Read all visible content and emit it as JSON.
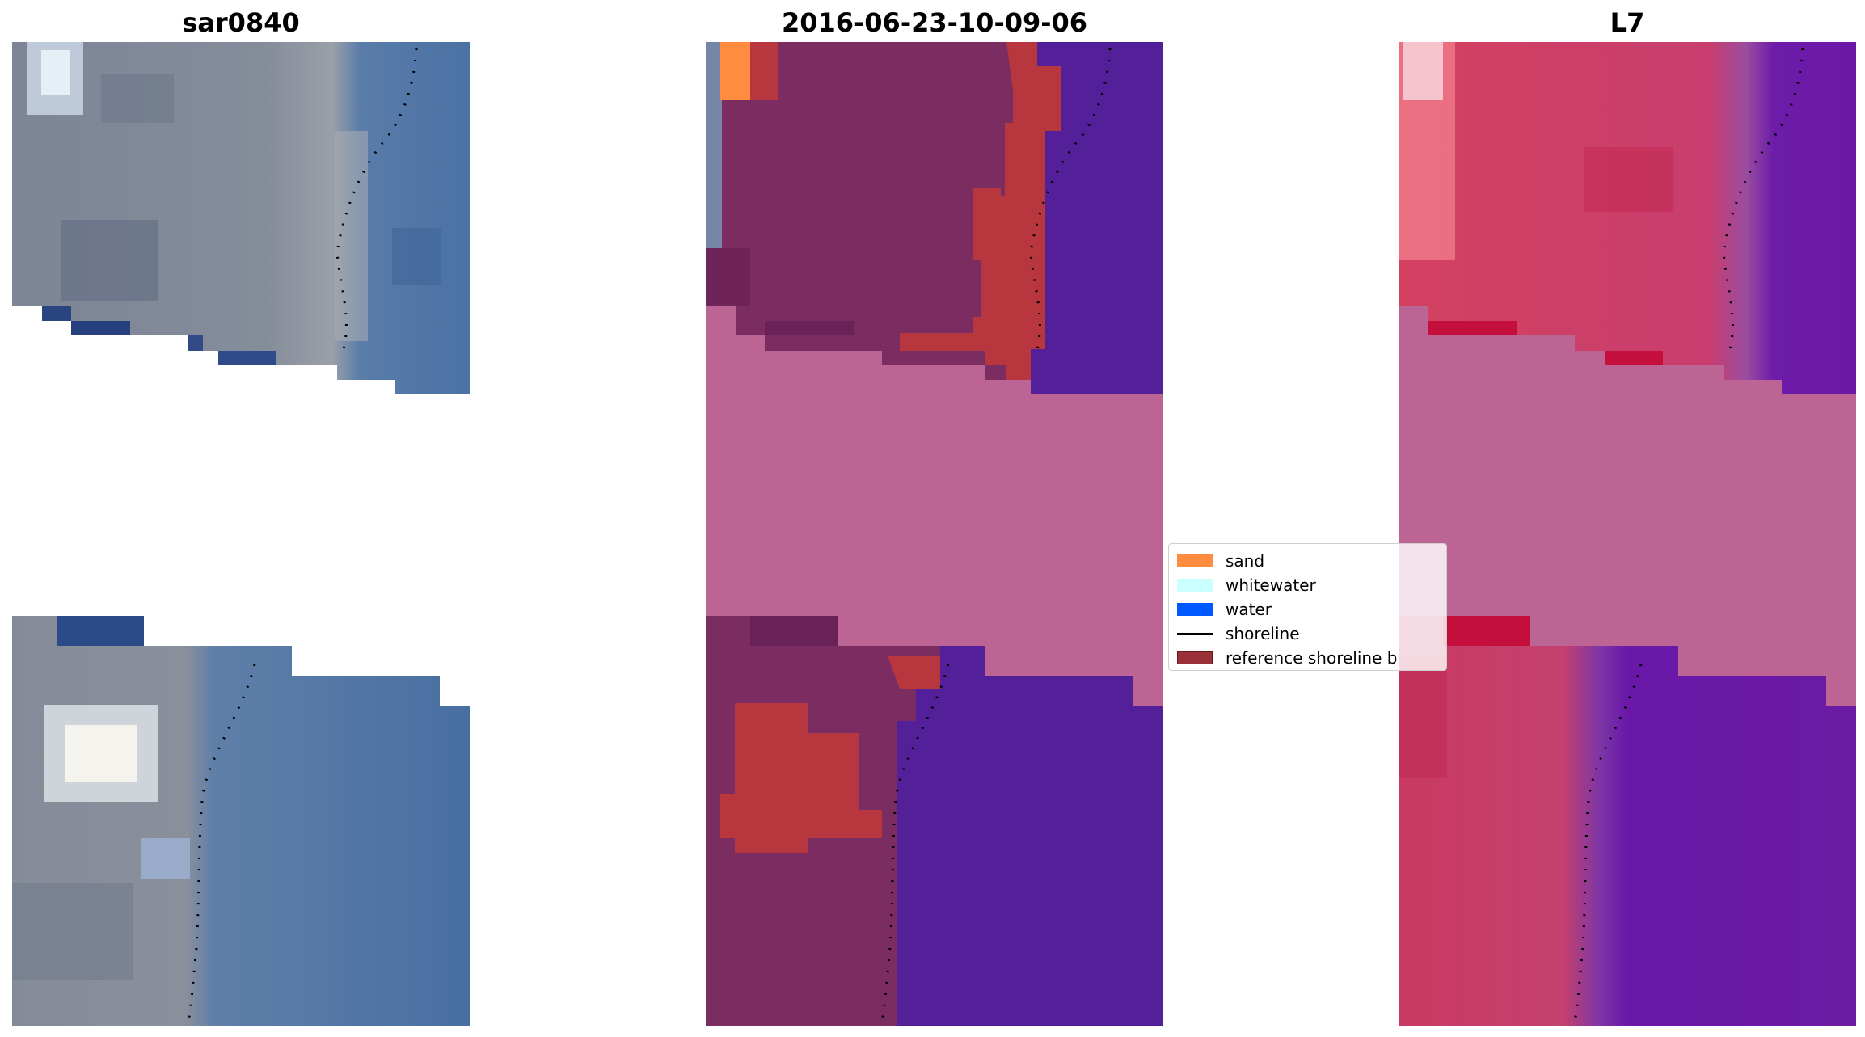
{
  "panels": [
    {
      "title": "sar0840"
    },
    {
      "title": "2016-06-23-10-09-06"
    },
    {
      "title": "L7"
    }
  ],
  "legend": {
    "items": [
      {
        "label": "sand",
        "color": "#ff8c3f",
        "kind": "patch"
      },
      {
        "label": "whitewater",
        "color": "#c9ffff",
        "kind": "patch"
      },
      {
        "label": "water",
        "color": "#0058ff",
        "kind": "patch"
      },
      {
        "label": "shoreline",
        "color": "#000000",
        "kind": "line"
      },
      {
        "label": "reference shoreline b",
        "color": "#9a3038",
        "kind": "patch"
      }
    ]
  },
  "colors": {
    "no_data": "#bc6595",
    "land_rgb": "#7c8595",
    "water_rgb": "#4a70a2",
    "land_class": "#7b2c60",
    "water_class": "#54209a",
    "land_false": "#cb3d6b",
    "water_false": "#6b18a8"
  }
}
